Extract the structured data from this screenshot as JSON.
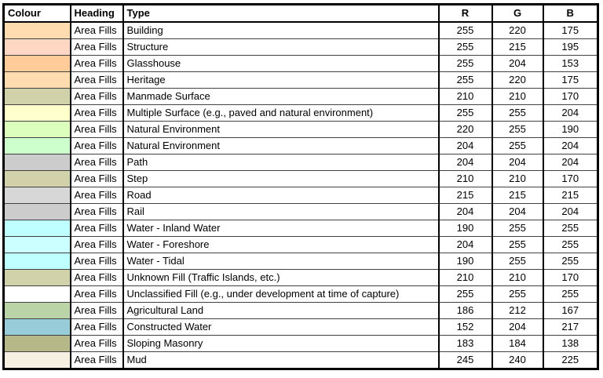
{
  "table": {
    "columns": [
      {
        "key": "colour",
        "label": "Colour"
      },
      {
        "key": "heading",
        "label": "Heading"
      },
      {
        "key": "type",
        "label": "Type"
      },
      {
        "key": "r",
        "label": "R"
      },
      {
        "key": "g",
        "label": "G"
      },
      {
        "key": "b",
        "label": "B"
      }
    ],
    "rows": [
      {
        "swatch": "#FFDCAF",
        "heading": "Area Fills",
        "type": "Building",
        "r": 255,
        "g": 220,
        "b": 175
      },
      {
        "swatch": "#FFD7C3",
        "heading": "Area Fills",
        "type": "Structure",
        "r": 255,
        "g": 215,
        "b": 195
      },
      {
        "swatch": "#FFCC99",
        "heading": "Area Fills",
        "type": "Glasshouse",
        "r": 255,
        "g": 204,
        "b": 153
      },
      {
        "swatch": "#FFDCAF",
        "heading": "Area Fills",
        "type": "Heritage",
        "r": 255,
        "g": 220,
        "b": 175
      },
      {
        "swatch": "#D2D2AA",
        "heading": "Area Fills",
        "type": "Manmade Surface",
        "r": 210,
        "g": 210,
        "b": 170
      },
      {
        "swatch": "#FFFFCC",
        "heading": "Area Fills",
        "type": "Multiple Surface (e.g., paved and natural environment)",
        "r": 255,
        "g": 255,
        "b": 204
      },
      {
        "swatch": "#DCFFBE",
        "heading": "Area Fills",
        "type": "Natural Environment",
        "r": 220,
        "g": 255,
        "b": 190
      },
      {
        "swatch": "#CCFFCC",
        "heading": "Area Fills",
        "type": "Natural Environment",
        "r": 204,
        "g": 255,
        "b": 204
      },
      {
        "swatch": "#CCCCCC",
        "heading": "Area Fills",
        "type": "Path",
        "r": 204,
        "g": 204,
        "b": 204
      },
      {
        "swatch": "#D2D2AA",
        "heading": "Area Fills",
        "type": "Step",
        "r": 210,
        "g": 210,
        "b": 170
      },
      {
        "swatch": "#D7D7D7",
        "heading": "Area Fills",
        "type": "Road",
        "r": 215,
        "g": 215,
        "b": 215
      },
      {
        "swatch": "#CCCCCC",
        "heading": "Area Fills",
        "type": "Rail",
        "r": 204,
        "g": 204,
        "b": 204
      },
      {
        "swatch": "#BEFFFF",
        "heading": "Area Fills",
        "type": "Water - Inland Water",
        "r": 190,
        "g": 255,
        "b": 255
      },
      {
        "swatch": "#CCFFFF",
        "heading": "Area Fills",
        "type": "Water - Foreshore",
        "r": 204,
        "g": 255,
        "b": 255
      },
      {
        "swatch": "#BEFFFF",
        "heading": "Area Fills",
        "type": "Water - Tidal",
        "r": 190,
        "g": 255,
        "b": 255
      },
      {
        "swatch": "#D2D2AA",
        "heading": "Area Fills",
        "type": "Unknown Fill (Traffic Islands, etc.)",
        "r": 210,
        "g": 210,
        "b": 170
      },
      {
        "swatch": "#FFFFFF",
        "heading": "Area Fills",
        "type": "Unclassified Fill (e.g., under development at time of capture)",
        "r": 255,
        "g": 255,
        "b": 255
      },
      {
        "swatch": "#BAD4A7",
        "heading": "Area Fills",
        "type": "Agricultural Land",
        "r": 186,
        "g": 212,
        "b": 167
      },
      {
        "swatch": "#98CCD9",
        "heading": "Area Fills",
        "type": "Constructed Water",
        "r": 152,
        "g": 204,
        "b": 217
      },
      {
        "swatch": "#B7B88A",
        "heading": "Area Fills",
        "type": "Sloping Masonry",
        "r": 183,
        "g": 184,
        "b": 138
      },
      {
        "swatch": "#F5F0E1",
        "heading": "Area Fills",
        "type": "Mud",
        "r": 245,
        "g": 240,
        "b": 225
      }
    ]
  }
}
